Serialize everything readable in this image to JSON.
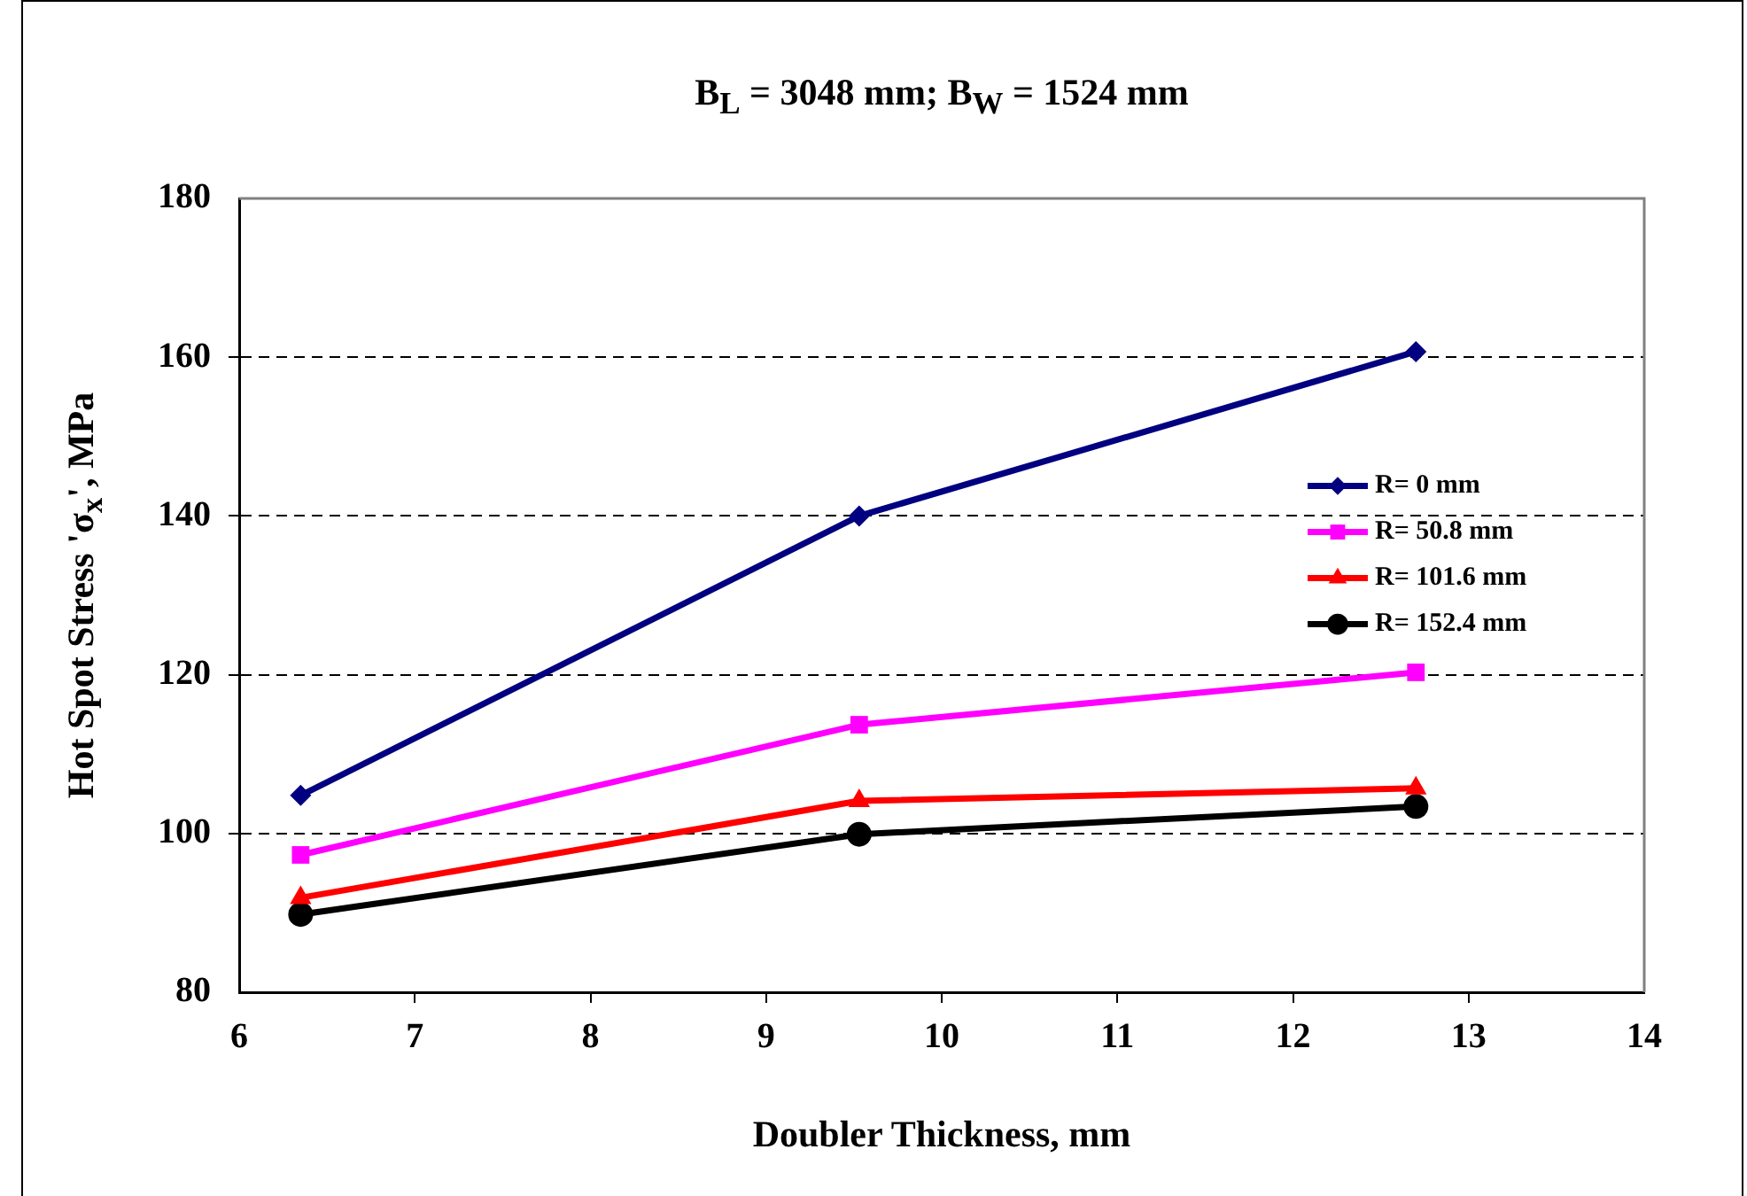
{
  "chart_data": {
    "type": "line",
    "title": "B$_{L}$ = 3048 mm; B$_{W}$ = 1524 mm",
    "xlabel": "Doubler Thickness, mm",
    "ylabel": "Hot Spot Stress 'σ$_{x}$', MPa",
    "x": [
      6.35,
      9.53,
      12.7
    ],
    "series": [
      {
        "name": "R= 0 mm",
        "color": "#000080",
        "marker": "diamond",
        "values": [
          104.8,
          140.0,
          160.7
        ]
      },
      {
        "name": "R= 50.8 mm",
        "color": "#ff00ff",
        "marker": "square",
        "values": [
          97.3,
          113.7,
          120.3
        ]
      },
      {
        "name": "R= 101.6 mm",
        "color": "#ff0000",
        "marker": "triangle",
        "values": [
          91.9,
          104.1,
          105.7
        ]
      },
      {
        "name": "R= 152.4 mm",
        "color": "#000000",
        "marker": "circle",
        "values": [
          89.8,
          99.9,
          103.4
        ]
      }
    ],
    "xlim": [
      6,
      14
    ],
    "xticks": [
      6,
      7,
      8,
      9,
      10,
      11,
      12,
      13,
      14
    ],
    "ylim": [
      80,
      180
    ],
    "yticks": [
      80,
      100,
      120,
      140,
      160,
      180
    ],
    "grid": "y",
    "legend": "right"
  }
}
